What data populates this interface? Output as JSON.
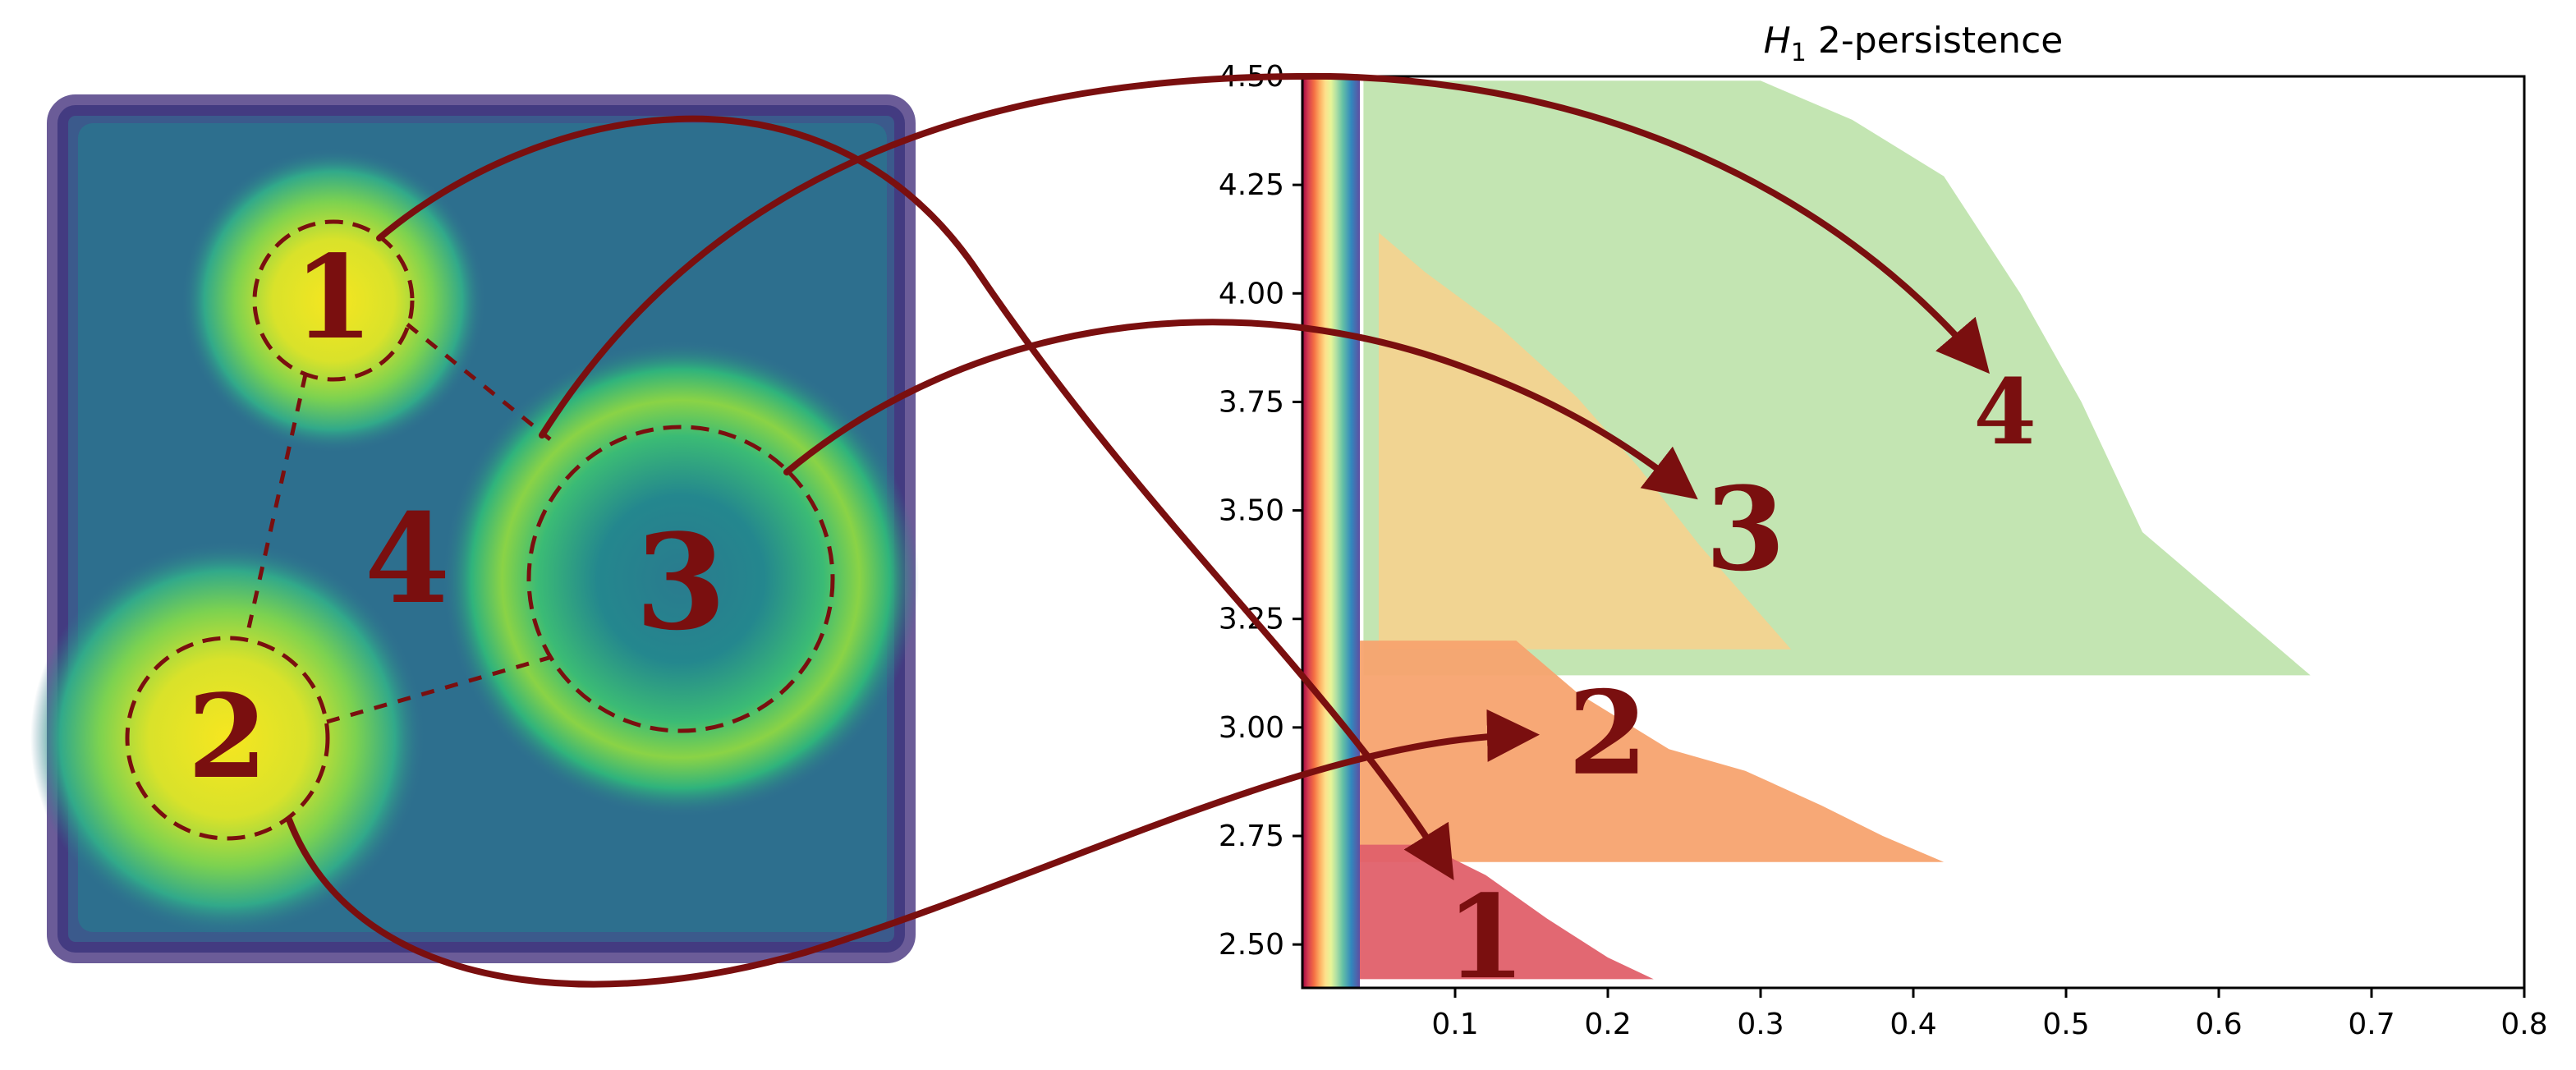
{
  "chart_data": [
    {
      "type": "scatter",
      "description_free": true,
      "colormap": "viridis",
      "regions": [
        {
          "id": "1",
          "label": "1"
        },
        {
          "id": "2",
          "label": "2"
        },
        {
          "id": "3",
          "label": "3"
        },
        {
          "id": "4",
          "label": "4"
        }
      ]
    },
    {
      "type": "area",
      "title": "2-persistence",
      "title_math": "H",
      "title_math_sub": "1",
      "xlim": [
        0.0,
        0.8
      ],
      "ylim": [
        2.4,
        4.5
      ],
      "x_ticks": [
        "0.1",
        "0.2",
        "0.3",
        "0.4",
        "0.5",
        "0.6",
        "0.7",
        "0.8"
      ],
      "x_tick_values": [
        0.1,
        0.2,
        0.3,
        0.4,
        0.5,
        0.6,
        0.7,
        0.8
      ],
      "y_ticks": [
        "2.50",
        "2.75",
        "3.00",
        "3.25",
        "3.50",
        "3.75",
        "4.00",
        "4.25",
        "4.50"
      ],
      "y_tick_values": [
        2.5,
        2.75,
        3.0,
        3.25,
        3.5,
        3.75,
        4.0,
        4.25,
        4.5
      ],
      "colors": {
        "region1": "#e0606a",
        "region2": "#f7a36f",
        "region3": "#fdd08a",
        "region3_light": "#fee8a5",
        "region4": "#b9e0a5",
        "arrow": "#7a0f0f"
      },
      "series": [
        {
          "name": "1",
          "points": [
            [
              0.03,
              2.73
            ],
            [
              0.08,
              2.73
            ],
            [
              0.12,
              2.66
            ],
            [
              0.16,
              2.56
            ],
            [
              0.2,
              2.47
            ],
            [
              0.23,
              2.42
            ],
            [
              0.03,
              2.42
            ]
          ]
        },
        {
          "name": "2",
          "points": [
            [
              0.03,
              3.2
            ],
            [
              0.14,
              3.2
            ],
            [
              0.18,
              3.08
            ],
            [
              0.24,
              2.95
            ],
            [
              0.29,
              2.9
            ],
            [
              0.34,
              2.82
            ],
            [
              0.38,
              2.75
            ],
            [
              0.42,
              2.69
            ],
            [
              0.03,
              2.69
            ]
          ]
        },
        {
          "name": "3",
          "points": [
            [
              0.05,
              4.14
            ],
            [
              0.08,
              4.05
            ],
            [
              0.13,
              3.92
            ],
            [
              0.18,
              3.76
            ],
            [
              0.22,
              3.6
            ],
            [
              0.26,
              3.42
            ],
            [
              0.29,
              3.3
            ],
            [
              0.32,
              3.18
            ],
            [
              0.05,
              3.18
            ]
          ]
        },
        {
          "name": "4",
          "points": [
            [
              0.04,
              4.49
            ],
            [
              0.3,
              4.49
            ],
            [
              0.36,
              4.4
            ],
            [
              0.42,
              4.27
            ],
            [
              0.47,
              4.0
            ],
            [
              0.51,
              3.75
            ],
            [
              0.55,
              3.45
            ],
            [
              0.6,
              3.3
            ],
            [
              0.66,
              3.12
            ],
            [
              0.04,
              3.12
            ]
          ]
        }
      ],
      "annotations": [
        {
          "text": "1",
          "x": 0.12,
          "y": 2.5
        },
        {
          "text": "2",
          "x": 0.2,
          "y": 2.97
        },
        {
          "text": "3",
          "x": 0.29,
          "y": 3.44
        },
        {
          "text": "4",
          "x": 0.46,
          "y": 3.73
        }
      ]
    }
  ]
}
